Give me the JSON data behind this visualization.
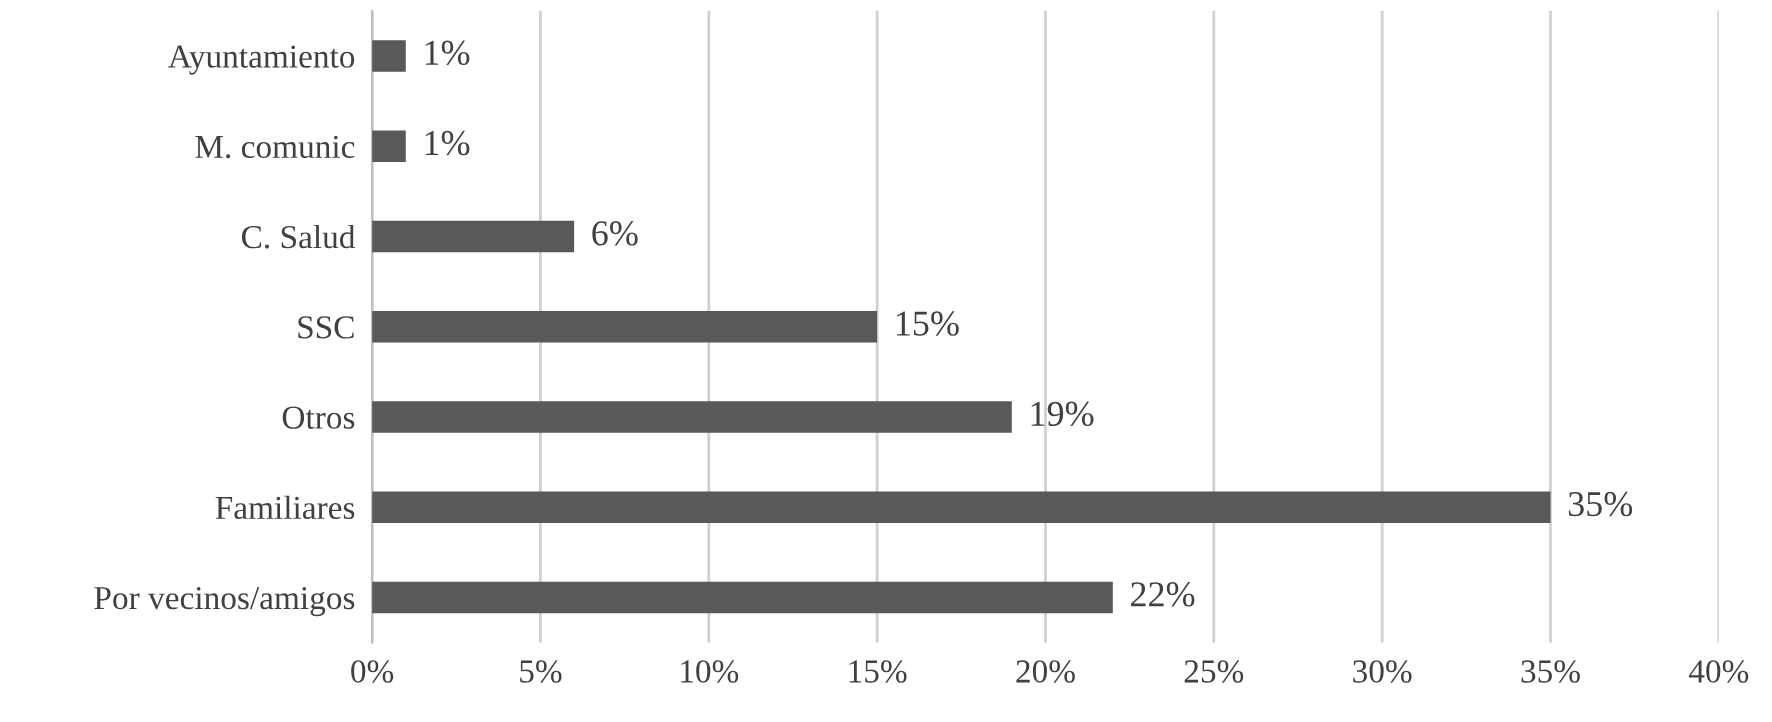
{
  "chart_data": {
    "type": "bar",
    "orientation": "horizontal",
    "categories": [
      "Ayuntamiento",
      "M. comunic",
      "C. Salud",
      "SSC",
      "Otros",
      "Familiares",
      "Por vecinos/amigos"
    ],
    "values": [
      1,
      1,
      6,
      15,
      19,
      35,
      22
    ],
    "value_labels": [
      "1%",
      "1%",
      "6%",
      "15%",
      "19%",
      "35%",
      "22%"
    ],
    "color": "#595959",
    "xlim": [
      0,
      40
    ],
    "xticks": [
      {
        "value": 0,
        "label": "0%"
      },
      {
        "value": 5,
        "label": "5%"
      },
      {
        "value": 10,
        "label": "10%"
      },
      {
        "value": 15,
        "label": "15%"
      },
      {
        "value": 20,
        "label": "20%"
      },
      {
        "value": 25,
        "label": "25%"
      },
      {
        "value": 30,
        "label": "30%"
      },
      {
        "value": 35,
        "label": "35%"
      },
      {
        "value": 40,
        "label": "40%"
      }
    ],
    "grid": "x",
    "legend": false
  }
}
